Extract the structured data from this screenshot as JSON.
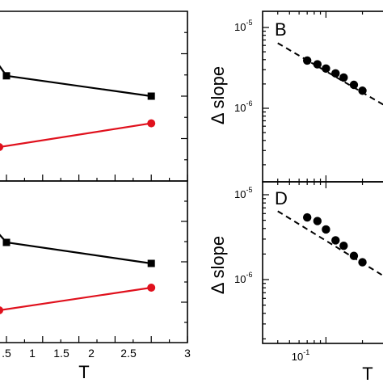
{
  "chart_data": [
    {
      "id": "top-left",
      "type": "line",
      "panel_label": "",
      "xlabel": "",
      "ylabel": "",
      "xlim": [
        0,
        3
      ],
      "grid": false,
      "series": [
        {
          "color": "#000000",
          "marker": "square",
          "x": [
            0.5,
            2.5
          ],
          "y": [
            0.62,
            0.5
          ],
          "offpanel_start": {
            "x": 0.4,
            "y": 0.68
          }
        },
        {
          "color": "#e0111d",
          "marker": "circle",
          "x": [
            0.4,
            2.5
          ],
          "y": [
            0.2,
            0.34
          ]
        }
      ]
    },
    {
      "id": "bottom-left",
      "type": "line",
      "panel_label": "",
      "xlabel": "T",
      "ylabel": "",
      "xlim": [
        0,
        3
      ],
      "xticks": [
        0.5,
        1,
        1.5,
        2,
        2.5,
        3
      ],
      "xtick_labels": [
        ".5",
        "1",
        "1.5",
        "2",
        "2.5",
        "3"
      ],
      "grid": false,
      "series": [
        {
          "color": "#000000",
          "marker": "square",
          "x": [
            0.5,
            2.5
          ],
          "y": [
            0.62,
            0.49
          ],
          "offpanel_start": {
            "x": 0.4,
            "y": 0.67
          }
        },
        {
          "color": "#e0111d",
          "marker": "circle",
          "x": [
            0.4,
            2.5
          ],
          "y": [
            0.2,
            0.34
          ]
        }
      ]
    },
    {
      "id": "top-right",
      "type": "scatter",
      "panel_label": "B",
      "ylabel": "Δ slope",
      "xlabel": "T",
      "yscale": "log",
      "xscale": "log",
      "yticks": [
        {
          "exp": "-5"
        },
        {
          "exp": "-6"
        }
      ],
      "grid": false,
      "series": [
        {
          "color": "#000000",
          "marker": "circle",
          "x": [
            0.07,
            0.085,
            0.1,
            0.12,
            0.14,
            0.17,
            0.2
          ],
          "y": [
            3.9e-06,
            3.5e-06,
            3.1e-06,
            2.7e-06,
            2.4e-06,
            1.95e-06,
            1.65e-06
          ]
        },
        {
          "color": "#000000",
          "style": "dashed",
          "name": "",
          "x": [
            0.04,
            0.3
          ],
          "y": [
            6.4e-06,
            1.1e-06
          ]
        }
      ]
    },
    {
      "id": "bottom-right",
      "type": "scatter",
      "panel_label": "D",
      "ylabel": "Δ slope",
      "xlabel": "T",
      "yscale": "log",
      "xscale": "log",
      "yticks": [
        {
          "exp": "-5"
        },
        {
          "exp": "-6"
        }
      ],
      "xticks": [
        {
          "exp": "-1"
        }
      ],
      "grid": false,
      "series": [
        {
          "color": "#000000",
          "marker": "circle",
          "x": [
            0.07,
            0.085,
            0.1,
            0.12,
            0.14,
            0.17,
            0.2
          ],
          "y": [
            5.4e-06,
            4.9e-06,
            3.9e-06,
            2.9e-06,
            2.5e-06,
            1.9e-06,
            1.6e-06
          ]
        },
        {
          "color": "#000000",
          "style": "dashed",
          "name": "",
          "x": [
            0.04,
            0.3
          ],
          "y": [
            6.4e-06,
            1.1e-06
          ]
        }
      ]
    }
  ],
  "labels": {
    "t_left": "T",
    "t_right": "T",
    "delta_slope_top": "Δ slope",
    "delta_slope_bottom": "Δ slope",
    "panel_b": "B",
    "panel_d": "D",
    "pow_base": "10",
    "pow_exp_m5": "-5",
    "pow_exp_m6": "-6",
    "pow_exp_m1": "-1",
    "xt_05": ".5",
    "xt_1": "1",
    "xt_15": "1.5",
    "xt_2": "2",
    "xt_25": "2.5",
    "xt_3": "3"
  }
}
